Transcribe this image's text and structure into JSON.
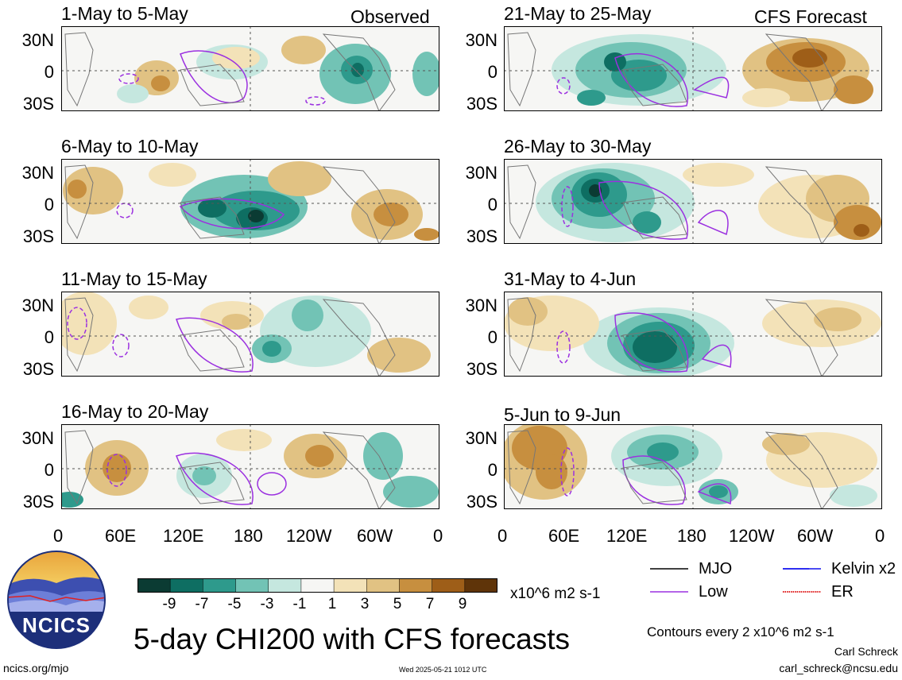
{
  "title": "5-day CHI200 with CFS forecasts",
  "labels": {
    "observed": "Observed",
    "forecast": "CFS Forecast"
  },
  "panels_left": [
    "1-May to 5-May",
    "6-May to 10-May",
    "11-May to 15-May",
    "16-May to 20-May"
  ],
  "panels_right": [
    "21-May to 25-May",
    "26-May to 30-May",
    "31-May to 4-Jun",
    "5-Jun to 9-Jun"
  ],
  "y_ticks": [
    "30N",
    "0",
    "30S"
  ],
  "x_ticks": [
    "0",
    "60E",
    "120E",
    "180",
    "120W",
    "60W",
    "0"
  ],
  "colorbar": {
    "labels": [
      "-9",
      "-7",
      "-5",
      "-3",
      "-1",
      "1",
      "3",
      "5",
      "7",
      "9"
    ],
    "units": "x10^6 m2 s-1",
    "colors": [
      "#0b3b33",
      "#0e6e62",
      "#2e9a8c",
      "#72c3b5",
      "#c5e7df",
      "#f6f6f4",
      "#f3e2b8",
      "#e1c283",
      "#c78f3f",
      "#9e5e18",
      "#5f3409"
    ]
  },
  "legend": [
    {
      "label": "MJO",
      "color": "#000000",
      "style": "solid"
    },
    {
      "label": "Kelvin x2",
      "color": "#1010ee",
      "style": "solid"
    },
    {
      "label": "Low",
      "color": "#9b30e0",
      "style": "solid"
    },
    {
      "label": "ER",
      "color": "#e02020",
      "style": "dotted"
    }
  ],
  "contours_note": "Contours every 2 x10^6 m2 s-1",
  "logo_text": "NCICS",
  "footer": {
    "url": "ncics.org/mjo",
    "timestamp": "Wed 2025-05-21 1012 UTC",
    "author": "Carl Schreck",
    "email": "carl_schreck@ncsu.edu"
  }
}
